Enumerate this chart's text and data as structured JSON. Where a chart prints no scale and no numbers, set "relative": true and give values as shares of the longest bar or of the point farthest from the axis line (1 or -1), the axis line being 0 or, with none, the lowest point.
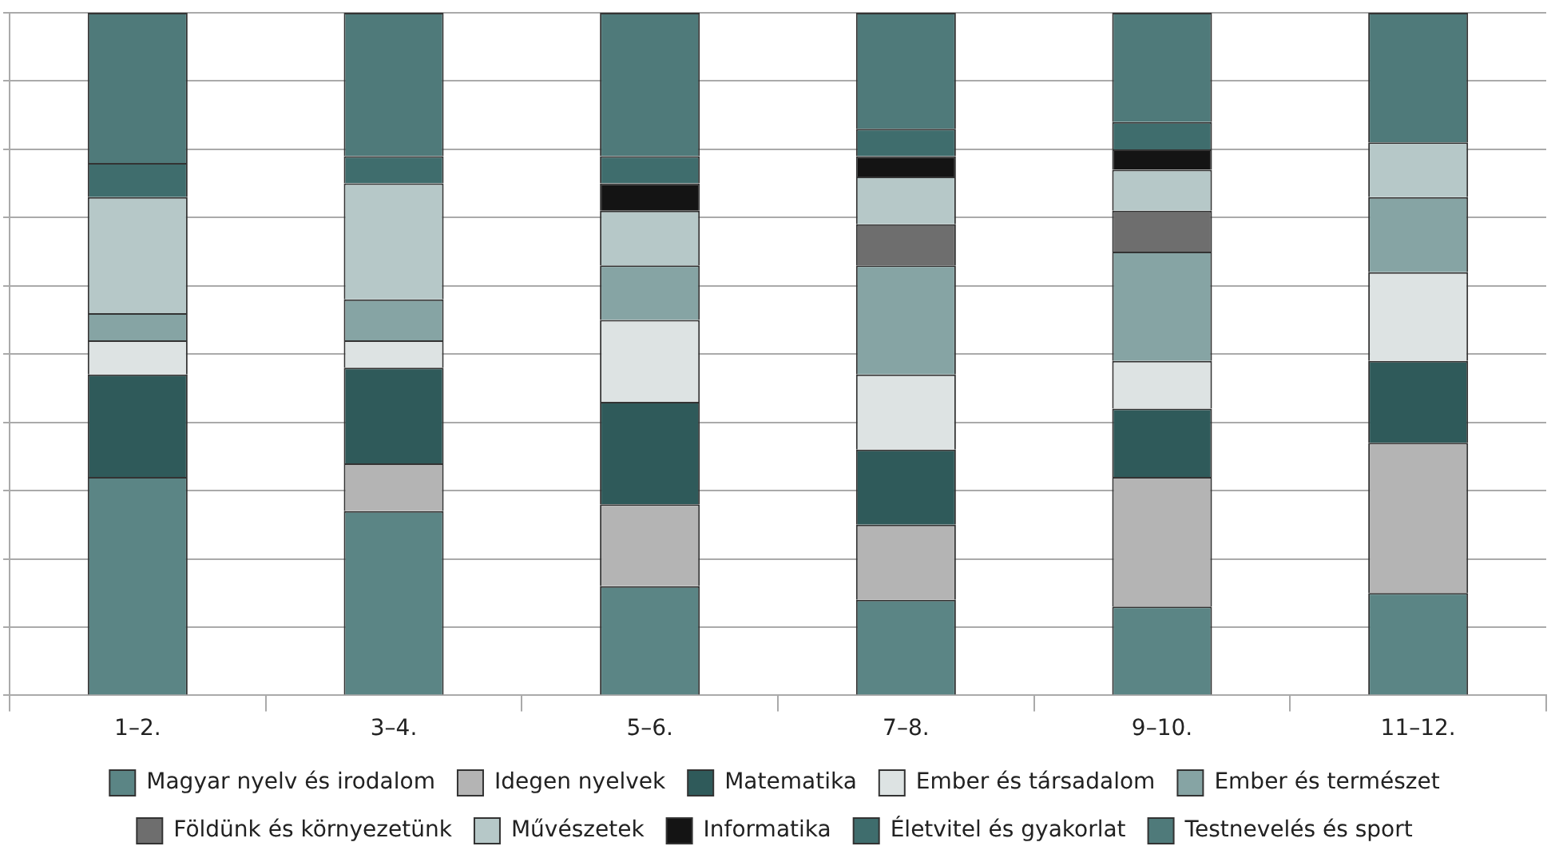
{
  "chart_data": {
    "type": "bar",
    "stacked": true,
    "relative": true,
    "categories": [
      "1–2.",
      "3–4.",
      "5–6.",
      "7–8.",
      "9–10.",
      "11–12."
    ],
    "series": [
      {
        "name": "Magyar nyelv és irodalom",
        "color": "#5b8585",
        "values": [
          0.32,
          0.27,
          0.16,
          0.14,
          0.13,
          0.15
        ]
      },
      {
        "name": "Idegen nyelvek",
        "color": "#b4b4b4",
        "values": [
          0,
          0.07,
          0.12,
          0.11,
          0.19,
          0.22
        ]
      },
      {
        "name": "Matematika",
        "color": "#2f5a5a",
        "values": [
          0.15,
          0.14,
          0.15,
          0.11,
          0.1,
          0.12
        ]
      },
      {
        "name": "Ember és társadalom",
        "color": "#dde3e3",
        "values": [
          0.05,
          0.04,
          0.12,
          0.11,
          0.07,
          0.13
        ]
      },
      {
        "name": "Ember és természet",
        "color": "#86a4a4",
        "values": [
          0.04,
          0.06,
          0.08,
          0.16,
          0.16,
          0.11
        ]
      },
      {
        "name": "Földünk és környezetünk",
        "color": "#6e6e6e",
        "values": [
          0,
          0,
          0,
          0.06,
          0.06,
          0
        ]
      },
      {
        "name": "Művészetek",
        "color": "#b6c8c8",
        "values": [
          0.17,
          0.17,
          0.08,
          0.07,
          0.06,
          0.08
        ]
      },
      {
        "name": "Informatika",
        "color": "#141414",
        "values": [
          0,
          0,
          0.04,
          0.03,
          0.03,
          0
        ]
      },
      {
        "name": "Életvitel és gyakorlat",
        "color": "#3f6d6d",
        "values": [
          0.05,
          0.04,
          0.04,
          0.04,
          0.04,
          0
        ]
      },
      {
        "name": "Testnevelés és sport",
        "color": "#4f7a7a",
        "values": [
          0.22,
          0.21,
          0.21,
          0.17,
          0.16,
          0.19
        ]
      }
    ],
    "grid": "y",
    "legend": "bottom"
  }
}
